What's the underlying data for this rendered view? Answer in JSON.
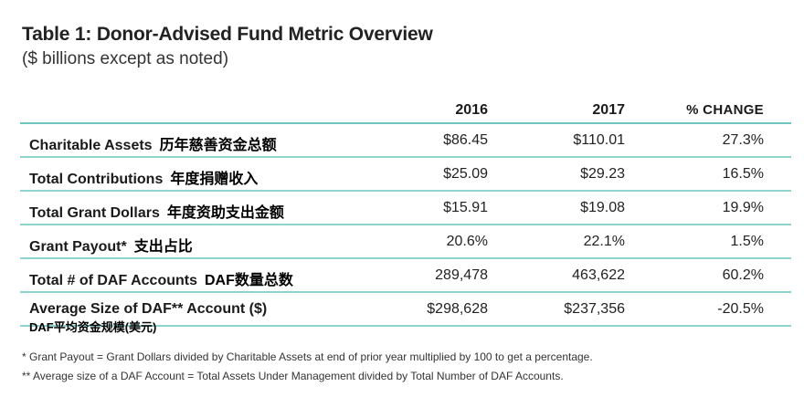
{
  "title": "Table 1: Donor-Advised Fund Metric Overview",
  "subtitle": "($ billions except as noted)",
  "columns": {
    "c2016": "2016",
    "c2017": "2017",
    "change": "% CHANGE"
  },
  "rows": [
    {
      "label": "Charitable Assets",
      "zh": "历年慈善资金总额",
      "v2016": "$86.45",
      "v2017": "$110.01",
      "change": "27.3%"
    },
    {
      "label": "Total Contributions",
      "zh": "年度捐赠收入",
      "v2016": "$25.09",
      "v2017": "$29.23",
      "change": "16.5%"
    },
    {
      "label": "Total Grant Dollars",
      "zh": "年度资助支出金额",
      "v2016": "$15.91",
      "v2017": "$19.08",
      "change": "19.9%"
    },
    {
      "label": "Grant Payout*",
      "zh": "支出占比",
      "v2016": "20.6%",
      "v2017": "22.1%",
      "change": "1.5%"
    },
    {
      "label": "Total # of DAF Accounts",
      "zh": "DAF数量总数",
      "v2016": "289,478",
      "v2017": "463,622",
      "change": "60.2%"
    },
    {
      "label": "Average Size of DAF** Account ($)",
      "zh": "",
      "v2016": "$298,628",
      "v2017": "$237,356",
      "change": "-20.5%"
    }
  ],
  "last_row_zh": "DAF平均资金规模(美元)",
  "notes": [
    "* Grant Payout = Grant Dollars divided by Charitable Assets at end of prior year multiplied by 100 to get a percentage.",
    "** Average size of a DAF Account = Total Assets Under Management divided by Total Number of DAF Accounts."
  ]
}
